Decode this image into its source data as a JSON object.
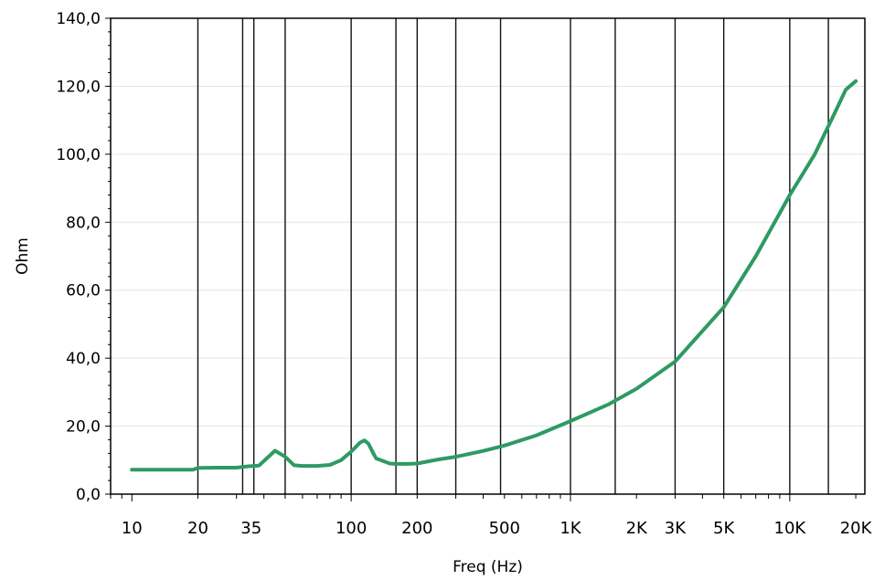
{
  "chart_data": {
    "type": "line",
    "title": "",
    "xlabel": "Freq (Hz)",
    "ylabel": "Ohm",
    "xscale": "log",
    "xlim": [
      8,
      22000
    ],
    "ylim": [
      0,
      140
    ],
    "grid": "vertical-lines-and-light-horizontal-gridlines",
    "legend": "none",
    "line_color": "#2e9a64",
    "x_tick_labels": [
      {
        "x": 10,
        "label": "10"
      },
      {
        "x": 20,
        "label": "20"
      },
      {
        "x": 35,
        "label": "35"
      },
      {
        "x": 100,
        "label": "100"
      },
      {
        "x": 200,
        "label": "200"
      },
      {
        "x": 500,
        "label": "500"
      },
      {
        "x": 1000,
        "label": "1K"
      },
      {
        "x": 2000,
        "label": "2K"
      },
      {
        "x": 3000,
        "label": "3K"
      },
      {
        "x": 5000,
        "label": "5K"
      },
      {
        "x": 10000,
        "label": "10K"
      },
      {
        "x": 20000,
        "label": "20K"
      }
    ],
    "y_ticks": [
      0,
      20,
      40,
      60,
      80,
      100,
      120,
      140
    ],
    "y_tick_labels": [
      "0,0",
      "20,0",
      "40,0",
      "60,0",
      "80,0",
      "100,0",
      "120,0",
      "140,0"
    ],
    "vertical_lines": [
      20,
      32,
      36,
      50,
      100,
      160,
      200,
      300,
      480,
      1000,
      1600,
      3000,
      5000,
      10000,
      15000
    ],
    "series": [
      {
        "x": [
          10,
          15,
          19,
          20,
          25,
          30,
          34,
          38,
          45,
          50,
          55,
          60,
          70,
          80,
          90,
          100,
          110,
          115,
          120,
          125,
          130,
          150,
          160,
          180,
          200,
          250,
          300,
          400,
          500,
          700,
          1000,
          1500,
          2000,
          3000,
          5000,
          7000,
          10000,
          13000,
          16000,
          18000,
          20000
        ],
        "values": [
          7.2,
          7.2,
          7.2,
          7.7,
          7.8,
          7.8,
          8.2,
          8.4,
          12.8,
          11.0,
          8.5,
          8.3,
          8.3,
          8.6,
          10.0,
          12.5,
          15.2,
          15.8,
          14.8,
          12.5,
          10.5,
          9.0,
          8.9,
          8.9,
          9.0,
          10.2,
          11.0,
          12.7,
          14.3,
          17.3,
          21.5,
          26.5,
          31.0,
          39.0,
          55.0,
          70.0,
          88.0,
          100.0,
          112.0,
          119.0,
          121.5
        ]
      }
    ]
  }
}
